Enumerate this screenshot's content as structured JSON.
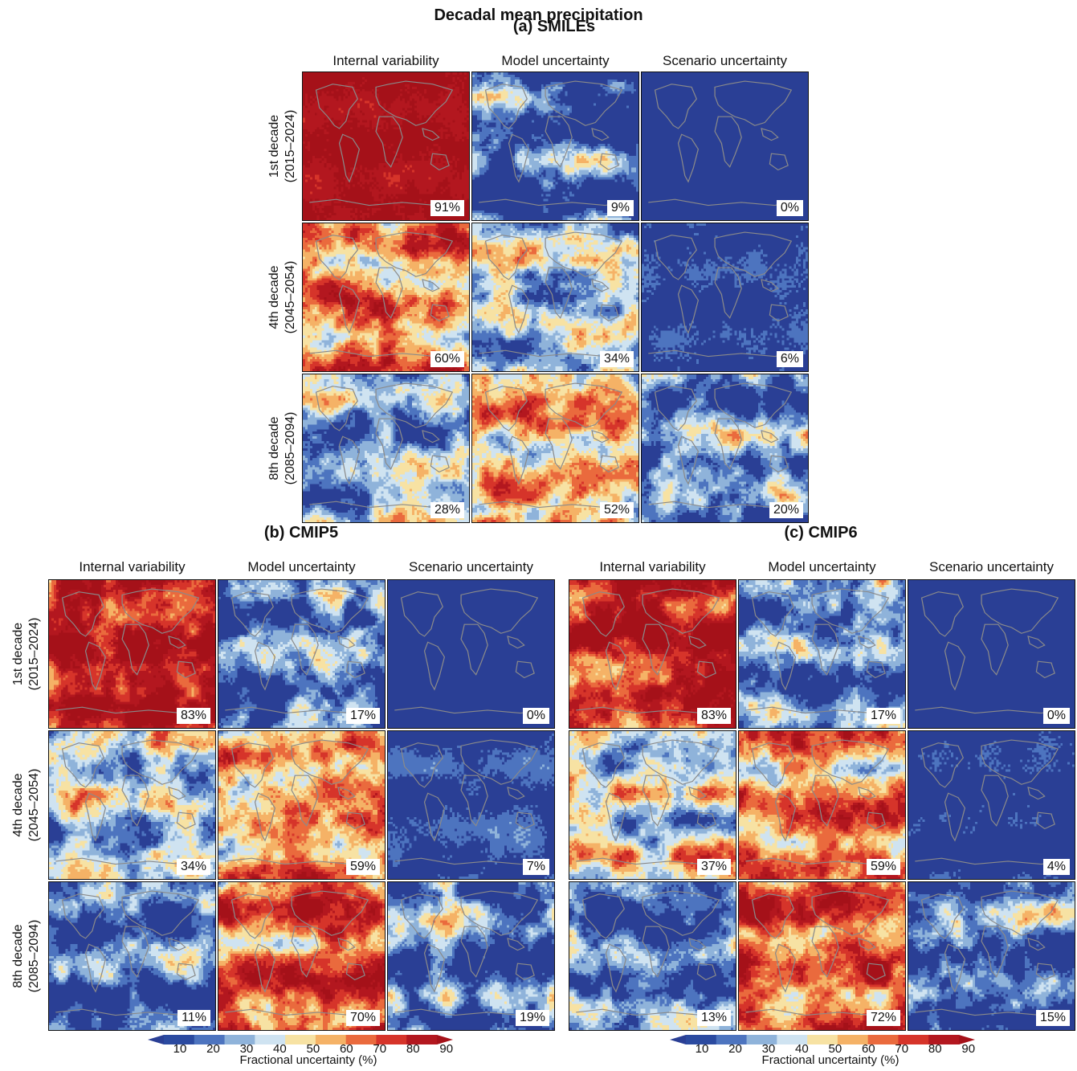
{
  "title": "Decadal mean precipitation",
  "column_headers": [
    "Internal variability",
    "Model uncertainty",
    "Scenario uncertainty"
  ],
  "row_labels": [
    {
      "line1": "1st decade",
      "line2": "(2015–2024)"
    },
    {
      "line1": "4th decade",
      "line2": "(2045–2054)"
    },
    {
      "line1": "8th decade",
      "line2": "(2085–2094)"
    }
  ],
  "colorbar": {
    "ticks": [
      "10",
      "20",
      "30",
      "40",
      "50",
      "60",
      "70",
      "80",
      "90"
    ],
    "label": "Fractional uncertainty (%)",
    "colors": [
      "#2b4aa0",
      "#4d74bf",
      "#8fb3da",
      "#cfe3f1",
      "#f7e2a3",
      "#f5b266",
      "#ea6a3d",
      "#d6342a",
      "#b3171f"
    ],
    "under_color": "#2a3f95",
    "over_color": "#a51119"
  },
  "chart_data": [
    {
      "type": "heatmap",
      "title": "(a) SMILEs",
      "rows": [
        "1st decade (2015–2024)",
        "4th decade (2045–2054)",
        "8th decade (2085–2094)"
      ],
      "columns": [
        "Internal variability",
        "Model uncertainty",
        "Scenario uncertainty"
      ],
      "percent_labels": [
        [
          "91%",
          "9%",
          "0%"
        ],
        [
          "60%",
          "34%",
          "6%"
        ],
        [
          "28%",
          "52%",
          "20%"
        ]
      ],
      "values": [
        [
          91,
          9,
          0
        ],
        [
          60,
          34,
          6
        ],
        [
          28,
          52,
          20
        ]
      ],
      "unit": "%"
    },
    {
      "type": "heatmap",
      "title": "(b) CMIP5",
      "rows": [
        "1st decade (2015–2024)",
        "4th decade (2045–2054)",
        "8th decade (2085–2094)"
      ],
      "columns": [
        "Internal variability",
        "Model uncertainty",
        "Scenario uncertainty"
      ],
      "percent_labels": [
        [
          "83%",
          "17%",
          "0%"
        ],
        [
          "34%",
          "59%",
          "7%"
        ],
        [
          "11%",
          "70%",
          "19%"
        ]
      ],
      "values": [
        [
          83,
          17,
          0
        ],
        [
          34,
          59,
          7
        ],
        [
          11,
          70,
          19
        ]
      ],
      "unit": "%"
    },
    {
      "type": "heatmap",
      "title": "(c) CMIP6",
      "rows": [
        "1st decade (2015–2024)",
        "4th decade (2045–2054)",
        "8th decade (2085–2094)"
      ],
      "columns": [
        "Internal variability",
        "Model uncertainty",
        "Scenario uncertainty"
      ],
      "percent_labels": [
        [
          "83%",
          "17%",
          "0%"
        ],
        [
          "37%",
          "59%",
          "4%"
        ],
        [
          "13%",
          "72%",
          "15%"
        ]
      ],
      "values": [
        [
          83,
          17,
          0
        ],
        [
          37,
          59,
          4
        ],
        [
          13,
          72,
          15
        ]
      ],
      "unit": "%"
    }
  ]
}
